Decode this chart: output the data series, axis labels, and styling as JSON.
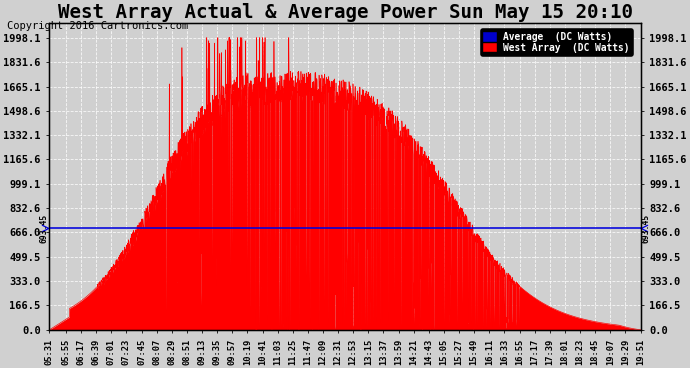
{
  "title": "West Array Actual & Average Power Sun May 15 20:10",
  "copyright": "Copyright 2016 Cartronics.com",
  "average_value": 693.45,
  "ymax": 2100,
  "ymin": 0,
  "yticks": [
    0.0,
    166.5,
    333.0,
    499.5,
    666.0,
    832.6,
    999.1,
    1165.6,
    1332.1,
    1498.6,
    1665.1,
    1831.6,
    1998.1
  ],
  "ytick_labels": [
    "0.0",
    "166.5",
    "333.0",
    "499.5",
    "666.0",
    "832.6",
    "999.1",
    "1165.6",
    "1332.1",
    "1498.6",
    "1665.1",
    "1831.6",
    "1998.1"
  ],
  "bg_color": "#d0d0d0",
  "plot_bg_color": "#d0d0d0",
  "red_color": "#ff0000",
  "avg_line_color": "#0000dd",
  "legend_avg_color": "#0000cc",
  "legend_west_color": "#ff0000",
  "title_fontsize": 12,
  "copyright_fontsize": 6.5,
  "xtick_fontsize": 5.5,
  "ytick_fontsize": 6.5,
  "t_start": 331,
  "t_end": 1191,
  "x_tick_pos_shown": [
    331,
    355,
    377,
    399,
    421,
    443,
    465,
    487,
    509,
    531,
    553,
    575,
    597,
    619,
    641,
    663,
    685,
    707,
    729,
    751,
    773,
    795,
    817,
    839,
    861,
    883,
    905,
    927,
    949,
    971,
    993,
    1015,
    1037,
    1059,
    1081,
    1103,
    1125,
    1147,
    1169,
    1191
  ],
  "x_tick_labels_shown": [
    "05:31",
    "05:55",
    "06:17",
    "06:39",
    "07:01",
    "07:23",
    "07:45",
    "08:07",
    "08:29",
    "08:51",
    "09:13",
    "09:35",
    "09:57",
    "10:19",
    "10:41",
    "11:03",
    "11:25",
    "11:47",
    "12:09",
    "12:31",
    "12:53",
    "13:15",
    "13:37",
    "13:59",
    "14:21",
    "14:43",
    "15:05",
    "15:27",
    "15:49",
    "16:11",
    "16:33",
    "16:55",
    "17:17",
    "17:39",
    "18:01",
    "18:23",
    "18:45",
    "19:07",
    "19:29",
    "19:51"
  ]
}
